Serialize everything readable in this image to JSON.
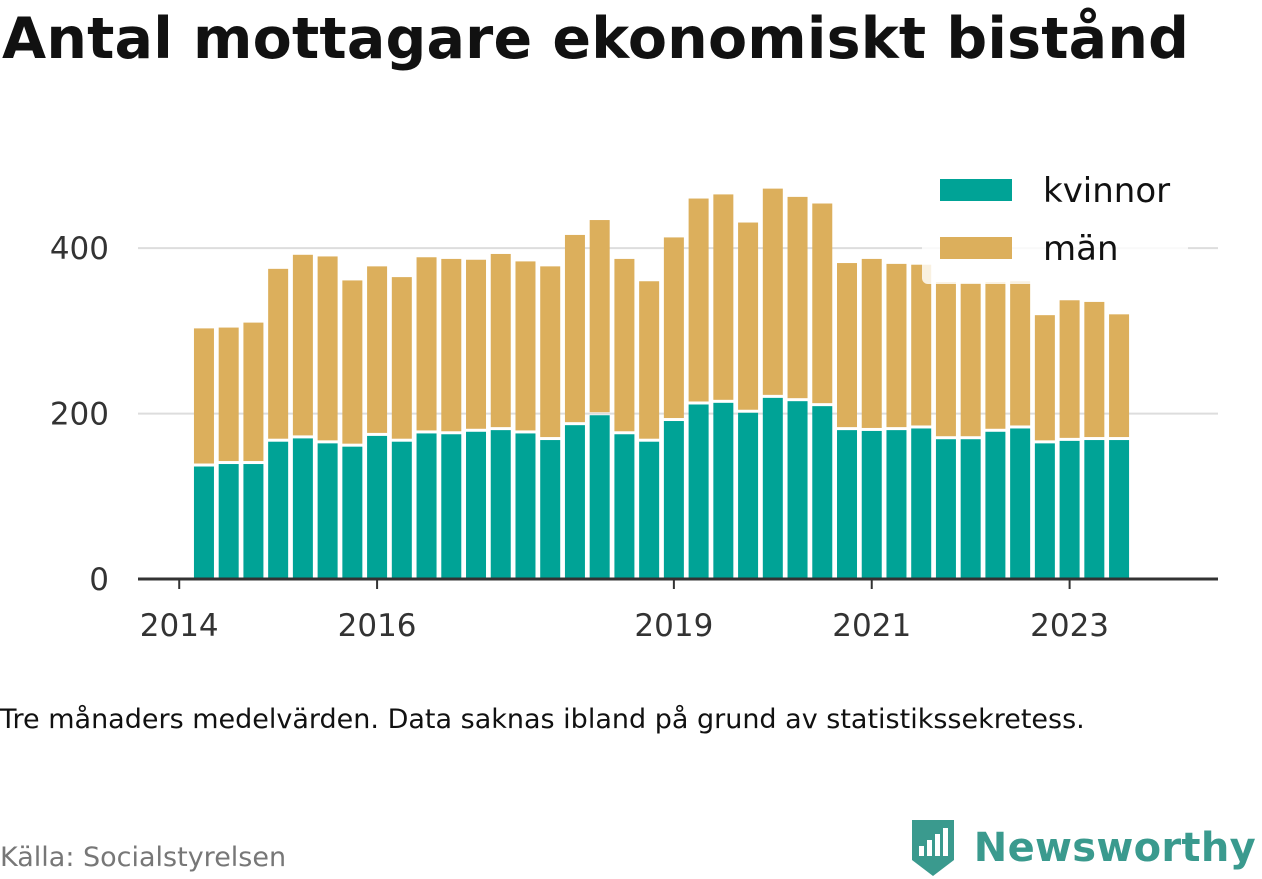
{
  "title": "Antal mottagare ekonomiskt bistånd",
  "note": "Tre månaders medelvärden. Data saknas ibland på grund av statistikssekretess.",
  "source": "Källa: Socialstyrelsen",
  "brand": {
    "name": "Newsworthy",
    "icon": "newsworthy-logo-icon",
    "color": "#3a9a8e"
  },
  "colors": {
    "kvinnor": "#00a396",
    "man": "#dcaf5c",
    "axis": "#333333",
    "grid": "#dddddd",
    "tick_text": "#333333"
  },
  "chart_data": {
    "type": "bar",
    "stacked": true,
    "x_type": "time",
    "xlim": [
      "2013-08",
      "2024-07"
    ],
    "ylim": [
      0,
      480
    ],
    "x_ticks": [
      "2014",
      "2016",
      "2019",
      "2021",
      "2023"
    ],
    "y_ticks": [
      0,
      200,
      400
    ],
    "grid": "horizontal",
    "legend_position": "top-right",
    "x": [
      "2014-04",
      "2014-07",
      "2014-10",
      "2015-01",
      "2015-04",
      "2015-07",
      "2015-10",
      "2016-01",
      "2016-04",
      "2016-07",
      "2016-10",
      "2017-01",
      "2017-04",
      "2017-07",
      "2017-10",
      "2018-01",
      "2018-04",
      "2018-07",
      "2018-10",
      "2019-01",
      "2019-04",
      "2019-07",
      "2019-10",
      "2020-01",
      "2020-04",
      "2020-07",
      "2020-10",
      "2021-01",
      "2021-04",
      "2021-07",
      "2021-10",
      "2022-01",
      "2022-04",
      "2022-07",
      "2022-10",
      "2023-01",
      "2023-04",
      "2023-07"
    ],
    "series": [
      {
        "name": "kvinnor",
        "color": "#00a396",
        "values": [
          136,
          139,
          139,
          166,
          170,
          164,
          160,
          173,
          166,
          176,
          175,
          178,
          180,
          176,
          168,
          186,
          198,
          175,
          166,
          191,
          211,
          213,
          201,
          219,
          215,
          209,
          180,
          179,
          180,
          182,
          169,
          169,
          178,
          182,
          164,
          167,
          168,
          168
        ]
      },
      {
        "name": "män",
        "color": "#dcaf5c",
        "values": [
          167,
          165,
          171,
          209,
          222,
          226,
          201,
          205,
          199,
          213,
          212,
          208,
          213,
          208,
          210,
          230,
          236,
          212,
          194,
          222,
          249,
          252,
          230,
          253,
          247,
          245,
          202,
          208,
          201,
          198,
          190,
          189,
          181,
          178,
          155,
          170,
          167,
          152
        ]
      }
    ]
  }
}
